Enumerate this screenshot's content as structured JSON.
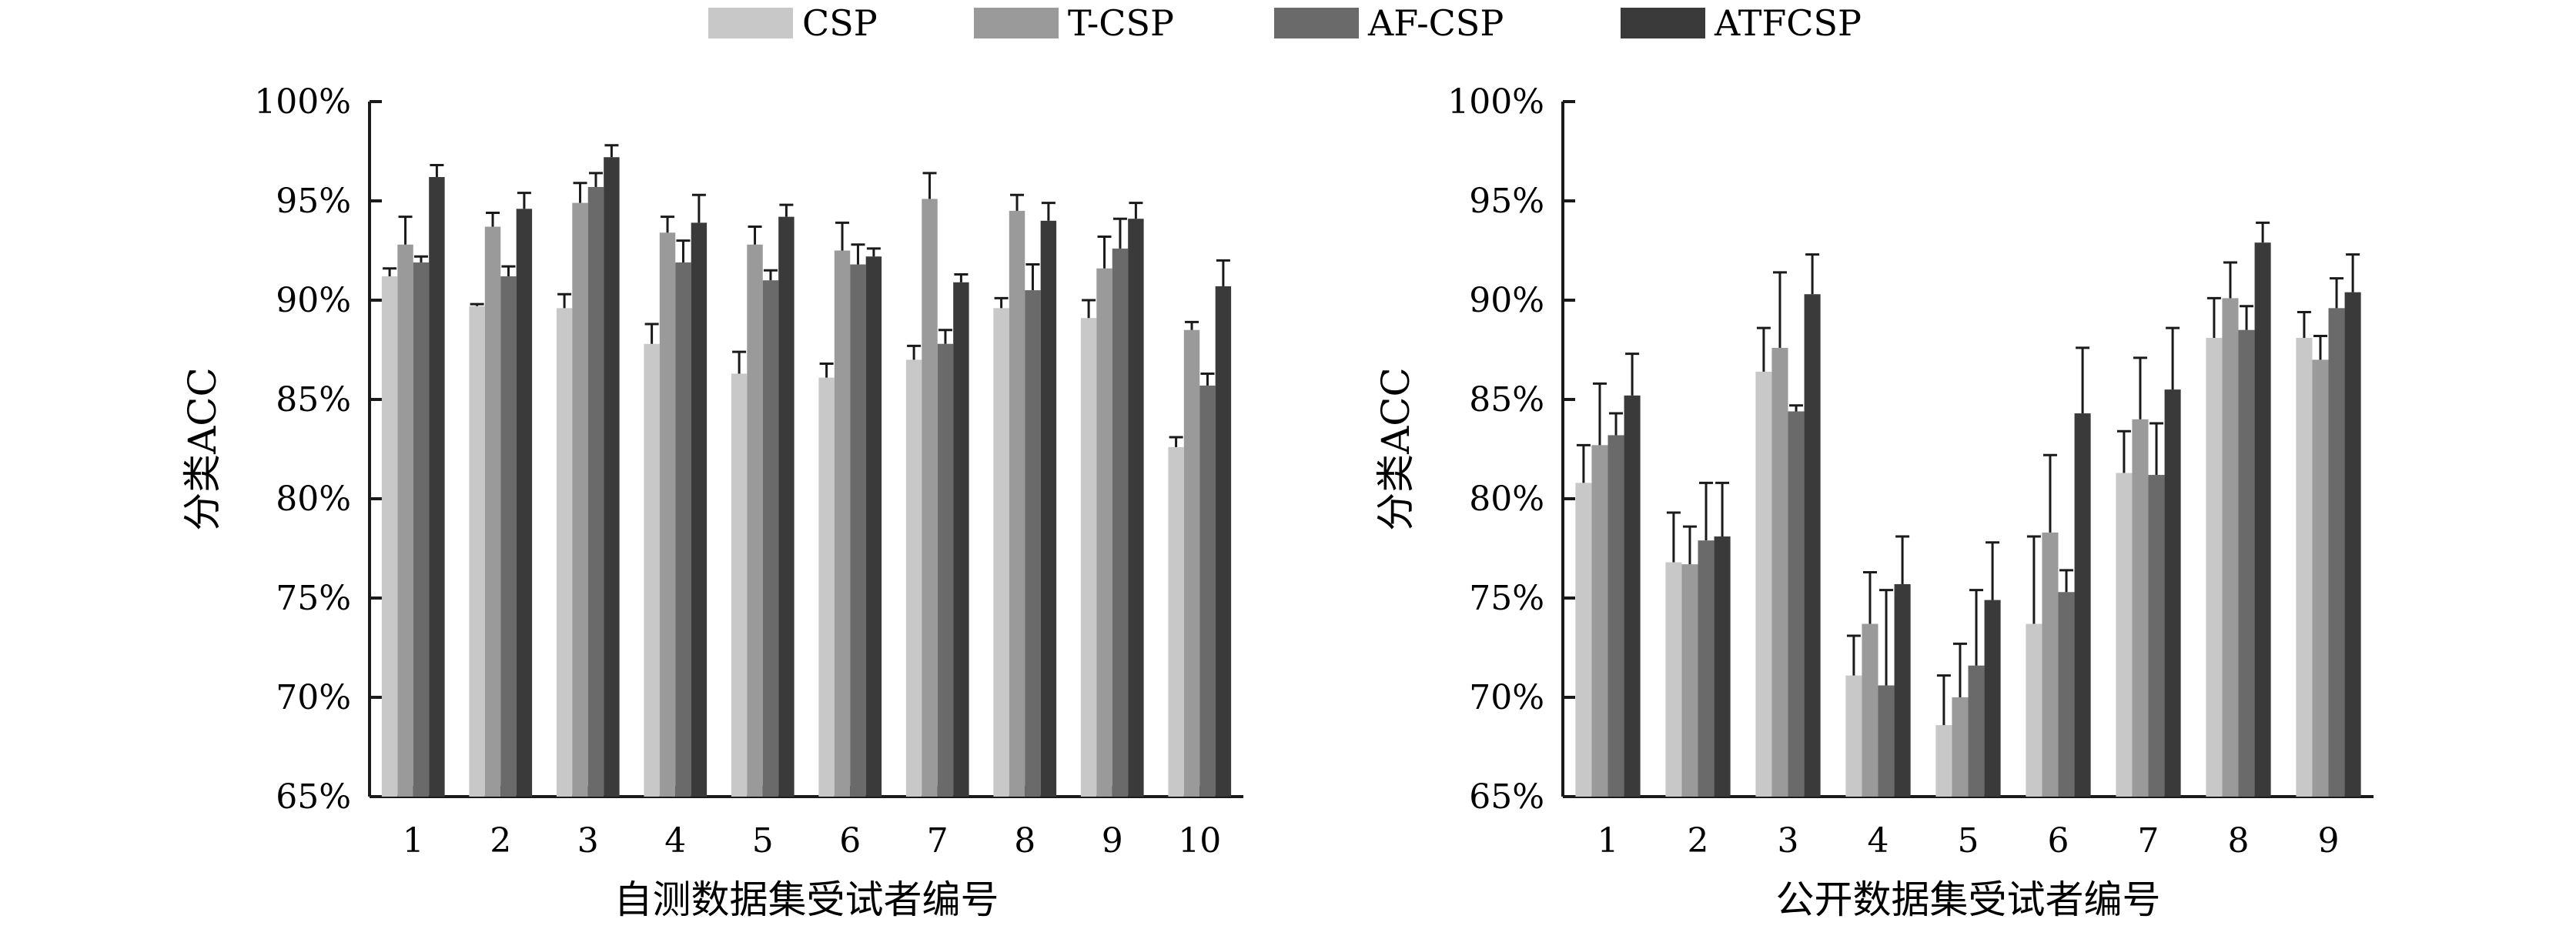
{
  "legend": [
    {
      "name": "CSP",
      "color": "#c8c8c8"
    },
    {
      "name": "T-CSP",
      "color": "#9a9a9a"
    },
    {
      "name": "AF-CSP",
      "color": "#6a6a6a"
    },
    {
      "name": "ATFCSP",
      "color": "#3a3a3a"
    }
  ],
  "chart_data": [
    {
      "type": "bar",
      "xlabel": "自测数据集受试者编号",
      "ylabel": "分类ACC",
      "ylim": [
        65,
        100
      ],
      "y_tick_labels": [
        "65%",
        "70%",
        "75%",
        "80%",
        "85%",
        "90%",
        "95%",
        "100%"
      ],
      "categories": [
        "1",
        "2",
        "3",
        "4",
        "5",
        "6",
        "7",
        "8",
        "9",
        "10"
      ],
      "series": [
        {
          "name": "CSP",
          "values": [
            91.2,
            89.7,
            89.6,
            87.8,
            86.3,
            86.1,
            87.0,
            89.6,
            89.1,
            82.6
          ],
          "errors": [
            0.4,
            0.1,
            0.7,
            1.0,
            1.1,
            0.7,
            0.7,
            0.5,
            0.9,
            0.5
          ]
        },
        {
          "name": "T-CSP",
          "values": [
            92.8,
            93.7,
            94.9,
            93.4,
            92.8,
            92.5,
            95.1,
            94.5,
            91.6,
            88.5
          ],
          "errors": [
            1.4,
            0.7,
            1.0,
            0.8,
            0.9,
            1.4,
            1.3,
            0.8,
            1.6,
            0.4
          ]
        },
        {
          "name": "AF-CSP",
          "values": [
            91.9,
            91.2,
            95.7,
            91.9,
            91.0,
            91.8,
            87.8,
            90.5,
            92.6,
            85.7
          ],
          "errors": [
            0.3,
            0.5,
            0.7,
            1.1,
            0.5,
            1.0,
            0.7,
            1.3,
            1.5,
            0.6
          ]
        },
        {
          "name": "ATFCSP",
          "values": [
            96.2,
            94.6,
            97.2,
            93.9,
            94.2,
            92.2,
            90.9,
            94.0,
            94.1,
            90.7
          ],
          "errors": [
            0.6,
            0.8,
            0.6,
            1.4,
            0.6,
            0.4,
            0.4,
            0.9,
            0.8,
            1.3
          ]
        }
      ]
    },
    {
      "type": "bar",
      "xlabel": "公开数据集受试者编号",
      "ylabel": "分类ACC",
      "ylim": [
        65,
        100
      ],
      "y_tick_labels": [
        "65%",
        "70%",
        "75%",
        "80%",
        "85%",
        "90%",
        "95%",
        "100%"
      ],
      "categories": [
        "1",
        "2",
        "3",
        "4",
        "5",
        "6",
        "7",
        "8",
        "9"
      ],
      "series": [
        {
          "name": "CSP",
          "values": [
            80.8,
            76.8,
            86.4,
            71.1,
            68.6,
            73.7,
            81.3,
            88.1,
            88.1
          ],
          "errors": [
            1.9,
            2.5,
            2.2,
            2.0,
            2.5,
            4.4,
            2.1,
            2.0,
            1.3
          ]
        },
        {
          "name": "T-CSP",
          "values": [
            82.7,
            76.7,
            87.6,
            73.7,
            70.0,
            78.3,
            84.0,
            90.1,
            87.0
          ],
          "errors": [
            3.1,
            1.9,
            3.8,
            2.6,
            2.7,
            3.9,
            3.1,
            1.8,
            1.2
          ]
        },
        {
          "name": "AF-CSP",
          "values": [
            83.2,
            77.9,
            84.4,
            70.6,
            71.6,
            75.3,
            81.2,
            88.5,
            89.6
          ],
          "errors": [
            1.1,
            2.9,
            0.3,
            4.8,
            3.8,
            1.1,
            2.6,
            1.2,
            1.5
          ]
        },
        {
          "name": "ATFCSP",
          "values": [
            85.2,
            78.1,
            90.3,
            75.7,
            74.9,
            84.3,
            85.5,
            92.9,
            90.4
          ],
          "errors": [
            2.1,
            2.7,
            2.0,
            2.4,
            2.9,
            3.3,
            3.1,
            1.0,
            1.9
          ]
        }
      ]
    }
  ]
}
